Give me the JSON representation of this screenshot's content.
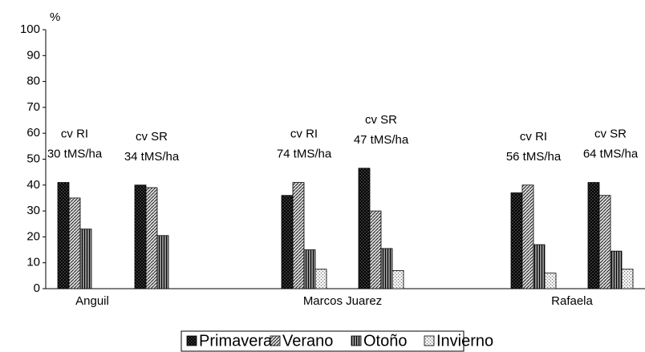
{
  "chart_data": {
    "type": "grouped-bar",
    "y_label": "%",
    "groups": [
      "Anguil",
      "Marcos Juarez",
      "Rafaela"
    ],
    "categories": [
      "cv RI",
      "cv SR",
      "cv RI",
      "cv SR",
      "cv RI",
      "cv SR"
    ],
    "category_notes": [
      "30 tMS/ha",
      "34 tMS/ha",
      "74 tMS/ha",
      "47 tMS/ha",
      "56 tMS/ha",
      "64 tMS/ha"
    ],
    "series": [
      {
        "name": "Primavera",
        "color": "#333333",
        "values": [
          41,
          40,
          36,
          46.5,
          37,
          41
        ]
      },
      {
        "name": "Verano",
        "color": "#d9d9d9",
        "values": [
          35,
          39,
          41,
          30,
          40,
          36
        ]
      },
      {
        "name": "Otoño",
        "color": "#8c8c8c",
        "values": [
          23,
          20.5,
          15,
          15.5,
          17,
          14.5
        ]
      },
      {
        "name": "Invierno",
        "color": "#eeeeee",
        "values": [
          null,
          null,
          7.5,
          7,
          6,
          7.5
        ]
      }
    ],
    "ylim": [
      0,
      100
    ],
    "yticks": [
      0,
      10,
      20,
      30,
      40,
      50,
      60,
      70,
      80,
      90,
      100
    ]
  }
}
